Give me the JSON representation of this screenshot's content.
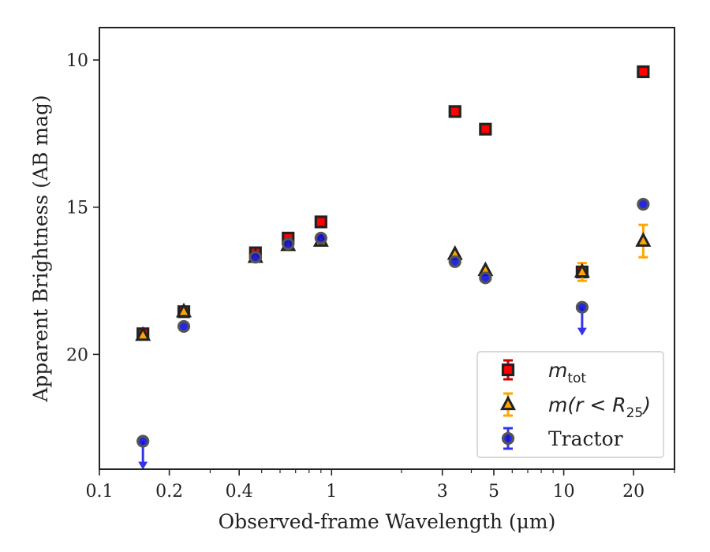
{
  "chart_data": {
    "type": "scatter",
    "title": "",
    "xlabel": "Observed-frame Wavelength (μm)",
    "ylabel": "Apparent Brightness (AB mag)",
    "xscale": "log",
    "xlim": [
      0.1,
      30
    ],
    "ylim": [
      23.9,
      8.9
    ],
    "y_inverted": true,
    "x_ticks": [
      {
        "value": 0.1,
        "label": "0.1"
      },
      {
        "value": 0.2,
        "label": "0.2"
      },
      {
        "value": 0.4,
        "label": "0.4"
      },
      {
        "value": 1,
        "label": "1"
      },
      {
        "value": 3,
        "label": "3"
      },
      {
        "value": 5,
        "label": "5"
      },
      {
        "value": 10,
        "label": "10"
      },
      {
        "value": 20,
        "label": "20"
      }
    ],
    "y_ticks": [
      {
        "value": 10,
        "label": "10"
      },
      {
        "value": 15,
        "label": "15"
      },
      {
        "value": 20,
        "label": "20"
      }
    ],
    "grid": false,
    "legend_position": "bottom-right",
    "series": [
      {
        "name": "m_tot",
        "legend_main": "m",
        "legend_sub": "tot",
        "marker": "square",
        "color": "#ff0000",
        "edge_color": "#222222",
        "points": [
          {
            "x": 0.154,
            "y": 19.3
          },
          {
            "x": 0.231,
            "y": 18.55
          },
          {
            "x": 0.47,
            "y": 16.55
          },
          {
            "x": 0.65,
            "y": 16.05
          },
          {
            "x": 0.9,
            "y": 15.5
          },
          {
            "x": 3.4,
            "y": 11.75
          },
          {
            "x": 4.6,
            "y": 12.35
          },
          {
            "x": 12.0,
            "y": 17.2
          },
          {
            "x": 22.0,
            "y": 10.4
          }
        ]
      },
      {
        "name": "m(r < R25)",
        "legend_main": "m(r < R",
        "legend_sub": "25",
        "legend_tail": ")",
        "marker": "triangle",
        "color": "#ffa500",
        "edge_color": "#222222",
        "points": [
          {
            "x": 0.154,
            "y": 19.35,
            "err": 0.0
          },
          {
            "x": 0.231,
            "y": 18.55,
            "err": 0.0
          },
          {
            "x": 0.47,
            "y": 16.7,
            "err": 0.0
          },
          {
            "x": 0.65,
            "y": 16.3,
            "err": 0.0
          },
          {
            "x": 0.9,
            "y": 16.15,
            "err": 0.0
          },
          {
            "x": 3.4,
            "y": 16.6,
            "err": 0.0
          },
          {
            "x": 4.6,
            "y": 17.15,
            "err": 0.0
          },
          {
            "x": 12.0,
            "y": 17.2,
            "err": 0.3
          },
          {
            "x": 22.0,
            "y": 16.15,
            "err": 0.55
          }
        ]
      },
      {
        "name": "Tractor",
        "legend_main": "Tractor",
        "marker": "circle",
        "color": "#1010dd",
        "edge_color": "#555555",
        "upper_limit_color": "#3333ee",
        "points": [
          {
            "x": 0.154,
            "y": 22.95,
            "upper_limit": true
          },
          {
            "x": 0.231,
            "y": 19.05
          },
          {
            "x": 0.47,
            "y": 16.7
          },
          {
            "x": 0.65,
            "y": 16.25
          },
          {
            "x": 0.9,
            "y": 16.05
          },
          {
            "x": 3.4,
            "y": 16.85
          },
          {
            "x": 4.6,
            "y": 17.4
          },
          {
            "x": 12.0,
            "y": 18.4,
            "upper_limit": true
          },
          {
            "x": 22.0,
            "y": 14.9
          }
        ]
      }
    ]
  }
}
